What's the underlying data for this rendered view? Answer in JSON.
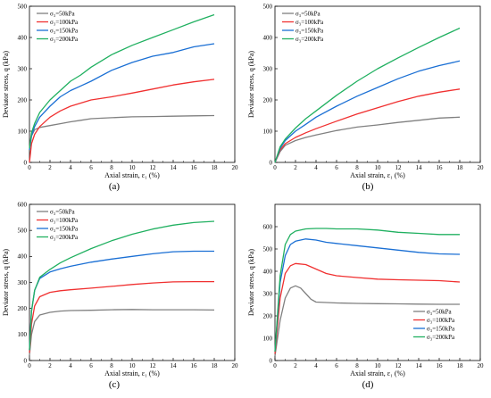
{
  "chart_data": [
    {
      "type": "line",
      "panel_label": "(a)",
      "xlabel": "Axial strain, ε₁ (%)",
      "ylabel": "Deviator stress, q (kPa)",
      "xlim": [
        0,
        20
      ],
      "ylim": [
        0,
        500
      ],
      "xticks": [
        0,
        2,
        4,
        6,
        8,
        10,
        12,
        14,
        16,
        18,
        20
      ],
      "yticks": [
        0,
        100,
        200,
        300,
        400,
        500
      ],
      "legend_position": "top-left",
      "series": [
        {
          "name": "σ₃=50kPa",
          "color": "#808080",
          "x": [
            0,
            0.2,
            0.5,
            1,
            2,
            3,
            4,
            5,
            6,
            8,
            10,
            12,
            14,
            16,
            18
          ],
          "y": [
            40,
            85,
            105,
            112,
            118,
            124,
            130,
            135,
            140,
            143,
            146,
            147,
            148,
            149,
            150
          ]
        },
        {
          "name": "σ₃=100kPa",
          "color": "#f03030",
          "x": [
            0,
            0.2,
            0.5,
            1,
            2,
            3,
            4,
            5,
            6,
            8,
            10,
            12,
            14,
            16,
            18
          ],
          "y": [
            0,
            60,
            90,
            115,
            145,
            165,
            180,
            190,
            200,
            210,
            222,
            235,
            248,
            258,
            266
          ]
        },
        {
          "name": "σ₃=150kPa",
          "color": "#1a6fd4",
          "x": [
            0,
            0.2,
            0.5,
            1,
            2,
            3,
            4,
            5,
            6,
            8,
            10,
            12,
            14,
            16,
            18
          ],
          "y": [
            40,
            85,
            115,
            145,
            180,
            210,
            230,
            245,
            260,
            295,
            320,
            340,
            352,
            370,
            380
          ]
        },
        {
          "name": "σ₃=200kPa",
          "color": "#20b060",
          "x": [
            0,
            0.2,
            0.5,
            1,
            2,
            3,
            4,
            5,
            6,
            8,
            10,
            12,
            14,
            16,
            18
          ],
          "y": [
            45,
            95,
            125,
            160,
            200,
            230,
            260,
            280,
            305,
            345,
            375,
            400,
            425,
            450,
            473
          ]
        }
      ]
    },
    {
      "type": "line",
      "panel_label": "(b)",
      "xlabel": "Axial strain, ε₁ (%)",
      "ylabel": "Deviator stress, q (kPa)",
      "xlim": [
        0,
        20
      ],
      "ylim": [
        0,
        500
      ],
      "xticks": [
        0,
        2,
        4,
        6,
        8,
        10,
        12,
        14,
        16,
        18,
        20
      ],
      "yticks": [
        0,
        100,
        200,
        300,
        400,
        500
      ],
      "legend_position": "top-left",
      "series": [
        {
          "name": "σ₃=50kPa",
          "color": "#808080",
          "x": [
            0,
            0.5,
            1,
            2,
            3,
            4,
            6,
            8,
            10,
            12,
            14,
            16,
            18
          ],
          "y": [
            0,
            35,
            55,
            70,
            80,
            88,
            102,
            113,
            120,
            128,
            135,
            142,
            145
          ]
        },
        {
          "name": "σ₃=100kPa",
          "color": "#f03030",
          "x": [
            0,
            0.5,
            1,
            2,
            3,
            4,
            6,
            8,
            10,
            12,
            14,
            16,
            18
          ],
          "y": [
            0,
            40,
            60,
            80,
            95,
            108,
            132,
            155,
            175,
            195,
            212,
            225,
            235
          ]
        },
        {
          "name": "σ₃=150kPa",
          "color": "#1a6fd4",
          "x": [
            0,
            0.5,
            1,
            2,
            3,
            4,
            6,
            8,
            10,
            12,
            14,
            16,
            18
          ],
          "y": [
            0,
            45,
            70,
            100,
            122,
            145,
            180,
            212,
            240,
            268,
            292,
            310,
            325
          ]
        },
        {
          "name": "σ₃=200kPa",
          "color": "#20b060",
          "x": [
            0,
            0.5,
            1,
            2,
            3,
            4,
            6,
            8,
            10,
            12,
            14,
            16,
            18
          ],
          "y": [
            0,
            50,
            75,
            110,
            140,
            165,
            215,
            260,
            300,
            335,
            368,
            400,
            430
          ]
        }
      ]
    },
    {
      "type": "line",
      "panel_label": "(c)",
      "xlabel": "Axial strain, ε₁ (%)",
      "ylabel": "Deviator stress, q (kPa)",
      "xlim": [
        0,
        20
      ],
      "ylim": [
        0,
        600
      ],
      "xticks": [
        0,
        2,
        4,
        6,
        8,
        10,
        12,
        14,
        16,
        18,
        20
      ],
      "yticks": [
        0,
        100,
        200,
        300,
        400,
        500,
        600
      ],
      "legend_position": "top-left",
      "series": [
        {
          "name": "σ₃=50kPa",
          "color": "#808080",
          "x": [
            0,
            0.2,
            0.5,
            1,
            2,
            3,
            4,
            6,
            8,
            10,
            12,
            14,
            16,
            18
          ],
          "y": [
            20,
            100,
            150,
            175,
            185,
            190,
            192,
            193,
            195,
            196,
            195,
            195,
            195,
            194
          ]
        },
        {
          "name": "σ₃=100kPa",
          "color": "#f03030",
          "x": [
            0,
            0.2,
            0.5,
            1,
            2,
            3,
            4,
            6,
            8,
            10,
            12,
            14,
            16,
            18
          ],
          "y": [
            30,
            140,
            210,
            245,
            262,
            268,
            272,
            278,
            285,
            292,
            298,
            302,
            303,
            303
          ]
        },
        {
          "name": "σ₃=150kPa",
          "color": "#1a6fd4",
          "x": [
            0,
            0.2,
            0.5,
            1,
            2,
            3,
            4,
            6,
            8,
            10,
            12,
            14,
            16,
            18
          ],
          "y": [
            40,
            190,
            270,
            315,
            340,
            352,
            362,
            378,
            390,
            400,
            410,
            418,
            420,
            420
          ]
        },
        {
          "name": "σ₃=200kPa",
          "color": "#20b060",
          "x": [
            0,
            0.2,
            0.5,
            1,
            2,
            3,
            4,
            6,
            8,
            10,
            12,
            14,
            16,
            18
          ],
          "y": [
            40,
            190,
            270,
            320,
            350,
            375,
            395,
            430,
            460,
            485,
            505,
            520,
            530,
            535
          ]
        }
      ]
    },
    {
      "type": "line",
      "panel_label": "(d)",
      "xlabel": "Axial strain, ε₁ (%)",
      "ylabel": "Deviator stress, q (kPa)",
      "xlim": [
        0,
        20
      ],
      "ylim": [
        0,
        700
      ],
      "xticks": [
        0,
        2,
        4,
        6,
        8,
        10,
        12,
        14,
        16,
        18,
        20
      ],
      "yticks": [
        0,
        100,
        200,
        300,
        400,
        500,
        600
      ],
      "legend_position": "bottom-right",
      "series": [
        {
          "name": "σ₃=50kPa",
          "color": "#808080",
          "x": [
            0,
            0.5,
            1,
            1.5,
            2,
            2.5,
            3,
            3.5,
            4,
            6,
            8,
            10,
            12,
            14,
            16,
            18
          ],
          "y": [
            20,
            180,
            280,
            325,
            335,
            325,
            300,
            275,
            262,
            258,
            256,
            255,
            254,
            253,
            252,
            252
          ]
        },
        {
          "name": "σ₃=100kPa",
          "color": "#f03030",
          "x": [
            0,
            0.5,
            1,
            1.5,
            2,
            3,
            4,
            5,
            6,
            8,
            10,
            12,
            14,
            16,
            18
          ],
          "y": [
            30,
            280,
            390,
            425,
            435,
            430,
            410,
            390,
            380,
            372,
            365,
            362,
            360,
            358,
            352
          ]
        },
        {
          "name": "σ₃=150kPa",
          "color": "#1a6fd4",
          "x": [
            0,
            0.5,
            1,
            1.5,
            2,
            3,
            4,
            5,
            6,
            8,
            10,
            12,
            14,
            16,
            18
          ],
          "y": [
            40,
            350,
            470,
            520,
            535,
            545,
            540,
            530,
            525,
            515,
            505,
            495,
            485,
            478,
            476
          ]
        },
        {
          "name": "σ₃=200kPa",
          "color": "#20b060",
          "x": [
            0,
            0.5,
            1,
            1.5,
            2,
            3,
            4,
            5,
            6,
            8,
            10,
            12,
            14,
            16,
            18
          ],
          "y": [
            40,
            380,
            520,
            565,
            580,
            590,
            592,
            592,
            590,
            590,
            585,
            575,
            570,
            565,
            565
          ]
        }
      ]
    }
  ]
}
